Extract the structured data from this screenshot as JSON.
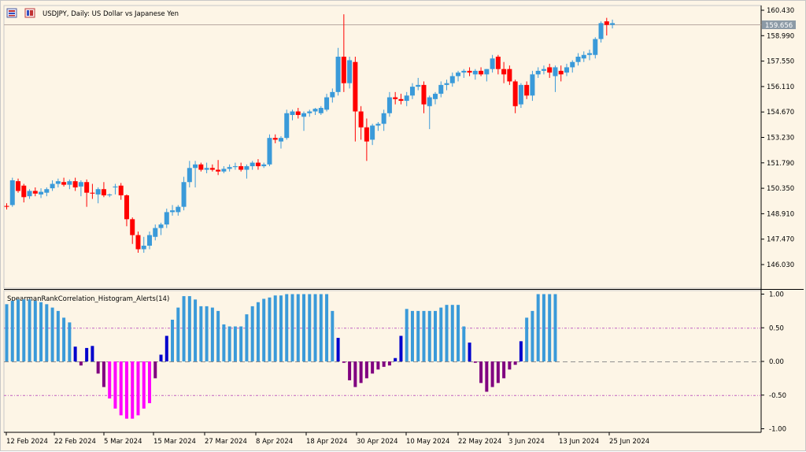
{
  "window": {
    "symbol_title": "USDJPY, Daily:  US Dollar vs Japanese Yen",
    "indicator_title": "SpearmanRankCorrelation_Histogram_Alerts(14)"
  },
  "colors": {
    "background": "#fdf5e6",
    "bull_candle": "#3a9ad9",
    "bear_candle": "#ff0000",
    "hist_light_blue": "#3a9ad9",
    "hist_dark_blue": "#0000cc",
    "hist_purple": "#800080",
    "hist_magenta": "#ff00ff",
    "level_line": "#c060c0",
    "zero_line": "#999999",
    "price_label_bg": "#8c9aa6"
  },
  "price_axis": {
    "ticks": [
      "160.430",
      "158.990",
      "157.550",
      "156.110",
      "154.670",
      "153.230",
      "151.790",
      "150.350",
      "148.910",
      "147.470",
      "146.030"
    ],
    "current_price": "159.656"
  },
  "indicator_axis": {
    "ticks": [
      "1.00",
      "0.50",
      "0.00",
      "-0.50",
      "-1.00"
    ]
  },
  "time_axis": {
    "labels": [
      "12 Feb 2024",
      "22 Feb 2024",
      "5 Mar 2024",
      "15 Mar 2024",
      "27 Mar 2024",
      "8 Apr 2024",
      "18 Apr 2024",
      "30 Apr 2024",
      "10 May 2024",
      "22 May 2024",
      "3 Jun 2024",
      "13 Jun 2024",
      "25 Jun 2024"
    ]
  },
  "candles": [
    {
      "o": 149.35,
      "h": 149.5,
      "l": 149.15,
      "c": 149.3
    },
    {
      "o": 149.4,
      "h": 150.95,
      "l": 149.3,
      "c": 150.8
    },
    {
      "o": 150.75,
      "h": 150.9,
      "l": 150.1,
      "c": 150.2
    },
    {
      "o": 150.5,
      "h": 150.6,
      "l": 149.55,
      "c": 149.85
    },
    {
      "o": 149.9,
      "h": 150.3,
      "l": 149.75,
      "c": 150.2
    },
    {
      "o": 150.2,
      "h": 150.4,
      "l": 149.9,
      "c": 150.05
    },
    {
      "o": 150.0,
      "h": 150.35,
      "l": 149.8,
      "c": 150.15
    },
    {
      "o": 150.1,
      "h": 150.4,
      "l": 149.9,
      "c": 150.3
    },
    {
      "o": 150.35,
      "h": 150.8,
      "l": 150.2,
      "c": 150.6
    },
    {
      "o": 150.6,
      "h": 150.9,
      "l": 150.4,
      "c": 150.75
    },
    {
      "o": 150.7,
      "h": 150.95,
      "l": 150.45,
      "c": 150.55
    },
    {
      "o": 150.55,
      "h": 150.85,
      "l": 150.3,
      "c": 150.75
    },
    {
      "o": 150.75,
      "h": 150.95,
      "l": 150.2,
      "c": 150.4
    },
    {
      "o": 150.45,
      "h": 150.8,
      "l": 149.9,
      "c": 150.7
    },
    {
      "o": 150.7,
      "h": 150.85,
      "l": 149.3,
      "c": 150.1
    },
    {
      "o": 150.1,
      "h": 150.6,
      "l": 149.75,
      "c": 150.05
    },
    {
      "o": 150.0,
      "h": 150.4,
      "l": 149.5,
      "c": 150.3
    },
    {
      "o": 150.3,
      "h": 150.7,
      "l": 149.85,
      "c": 149.95
    },
    {
      "o": 149.95,
      "h": 150.05,
      "l": 149.85,
      "c": 150.0
    },
    {
      "o": 150.4,
      "h": 150.6,
      "l": 150.0,
      "c": 150.45
    },
    {
      "o": 150.5,
      "h": 150.65,
      "l": 149.7,
      "c": 149.95
    },
    {
      "o": 149.95,
      "h": 150.0,
      "l": 148.2,
      "c": 148.6
    },
    {
      "o": 148.6,
      "h": 148.7,
      "l": 147.2,
      "c": 147.7
    },
    {
      "o": 147.7,
      "h": 147.9,
      "l": 146.7,
      "c": 146.9
    },
    {
      "o": 146.9,
      "h": 147.6,
      "l": 146.7,
      "c": 147.1
    },
    {
      "o": 147.1,
      "h": 147.9,
      "l": 146.9,
      "c": 147.7
    },
    {
      "o": 147.6,
      "h": 148.3,
      "l": 147.4,
      "c": 148.1
    },
    {
      "o": 148.1,
      "h": 148.4,
      "l": 147.7,
      "c": 148.3
    },
    {
      "o": 148.3,
      "h": 149.2,
      "l": 148.1,
      "c": 149.0
    },
    {
      "o": 149.0,
      "h": 149.4,
      "l": 148.8,
      "c": 149.1
    },
    {
      "o": 149.0,
      "h": 149.4,
      "l": 148.8,
      "c": 149.3
    },
    {
      "o": 149.3,
      "h": 151.0,
      "l": 149.1,
      "c": 150.7
    },
    {
      "o": 150.7,
      "h": 151.9,
      "l": 150.4,
      "c": 151.5
    },
    {
      "o": 151.5,
      "h": 151.9,
      "l": 150.4,
      "c": 151.7
    },
    {
      "o": 151.7,
      "h": 151.8,
      "l": 151.3,
      "c": 151.4
    },
    {
      "o": 151.4,
      "h": 151.8,
      "l": 151.2,
      "c": 151.5
    },
    {
      "o": 151.5,
      "h": 151.7,
      "l": 151.3,
      "c": 151.4
    },
    {
      "o": 151.4,
      "h": 151.95,
      "l": 151.1,
      "c": 151.3
    },
    {
      "o": 151.3,
      "h": 151.6,
      "l": 151.2,
      "c": 151.45
    },
    {
      "o": 151.45,
      "h": 151.7,
      "l": 151.3,
      "c": 151.55
    },
    {
      "o": 151.55,
      "h": 151.8,
      "l": 151.4,
      "c": 151.6
    },
    {
      "o": 151.6,
      "h": 151.8,
      "l": 151.3,
      "c": 151.4
    },
    {
      "o": 151.4,
      "h": 151.7,
      "l": 150.9,
      "c": 151.6
    },
    {
      "o": 151.6,
      "h": 151.9,
      "l": 151.4,
      "c": 151.8
    },
    {
      "o": 151.8,
      "h": 152.0,
      "l": 151.4,
      "c": 151.6
    },
    {
      "o": 151.6,
      "h": 151.8,
      "l": 151.5,
      "c": 151.7
    },
    {
      "o": 151.7,
      "h": 153.4,
      "l": 151.6,
      "c": 153.2
    },
    {
      "o": 153.2,
      "h": 153.4,
      "l": 152.9,
      "c": 153.1
    },
    {
      "o": 153.0,
      "h": 153.3,
      "l": 152.6,
      "c": 153.2
    },
    {
      "o": 153.2,
      "h": 154.8,
      "l": 153.1,
      "c": 154.6
    },
    {
      "o": 154.5,
      "h": 154.8,
      "l": 154.2,
      "c": 154.7
    },
    {
      "o": 154.7,
      "h": 154.9,
      "l": 154.3,
      "c": 154.5
    },
    {
      "o": 154.4,
      "h": 154.7,
      "l": 153.6,
      "c": 154.6
    },
    {
      "o": 154.6,
      "h": 154.8,
      "l": 154.4,
      "c": 154.7
    },
    {
      "o": 154.7,
      "h": 154.9,
      "l": 154.5,
      "c": 154.85
    },
    {
      "o": 154.6,
      "h": 155.0,
      "l": 154.5,
      "c": 154.9
    },
    {
      "o": 154.8,
      "h": 155.7,
      "l": 154.7,
      "c": 155.5
    },
    {
      "o": 155.5,
      "h": 156.0,
      "l": 155.2,
      "c": 155.8
    },
    {
      "o": 155.8,
      "h": 158.3,
      "l": 155.6,
      "c": 157.8
    },
    {
      "o": 157.8,
      "h": 160.2,
      "l": 155.8,
      "c": 156.3
    },
    {
      "o": 156.3,
      "h": 157.8,
      "l": 156.0,
      "c": 157.6
    },
    {
      "o": 157.5,
      "h": 157.8,
      "l": 153.0,
      "c": 154.7
    },
    {
      "o": 154.7,
      "h": 155.0,
      "l": 153.1,
      "c": 153.8
    },
    {
      "o": 153.8,
      "h": 154.3,
      "l": 151.9,
      "c": 153.0
    },
    {
      "o": 153.1,
      "h": 154.0,
      "l": 152.8,
      "c": 153.9
    },
    {
      "o": 153.9,
      "h": 154.1,
      "l": 153.6,
      "c": 154.0
    },
    {
      "o": 154.0,
      "h": 154.8,
      "l": 153.6,
      "c": 154.6
    },
    {
      "o": 154.6,
      "h": 155.8,
      "l": 154.4,
      "c": 155.5
    },
    {
      "o": 155.5,
      "h": 155.8,
      "l": 155.1,
      "c": 155.4
    },
    {
      "o": 155.4,
      "h": 155.7,
      "l": 155.1,
      "c": 155.3
    },
    {
      "o": 155.3,
      "h": 155.8,
      "l": 155.0,
      "c": 155.6
    },
    {
      "o": 155.6,
      "h": 156.3,
      "l": 155.4,
      "c": 156.1
    },
    {
      "o": 156.1,
      "h": 156.6,
      "l": 155.9,
      "c": 156.2
    },
    {
      "o": 156.2,
      "h": 156.4,
      "l": 154.6,
      "c": 155.1
    },
    {
      "o": 155.0,
      "h": 155.6,
      "l": 153.7,
      "c": 155.5
    },
    {
      "o": 155.4,
      "h": 155.8,
      "l": 155.1,
      "c": 155.7
    },
    {
      "o": 155.7,
      "h": 156.4,
      "l": 155.5,
      "c": 156.2
    },
    {
      "o": 156.2,
      "h": 156.5,
      "l": 155.9,
      "c": 156.3
    },
    {
      "o": 156.3,
      "h": 156.9,
      "l": 156.1,
      "c": 156.7
    },
    {
      "o": 156.7,
      "h": 157.0,
      "l": 156.4,
      "c": 156.9
    },
    {
      "o": 156.9,
      "h": 157.1,
      "l": 156.6,
      "c": 157.0
    },
    {
      "o": 157.0,
      "h": 157.2,
      "l": 156.7,
      "c": 156.9
    },
    {
      "o": 156.8,
      "h": 157.1,
      "l": 156.5,
      "c": 157.0
    },
    {
      "o": 157.0,
      "h": 157.2,
      "l": 156.7,
      "c": 156.8
    },
    {
      "o": 156.8,
      "h": 157.1,
      "l": 156.4,
      "c": 157.1
    },
    {
      "o": 157.1,
      "h": 157.9,
      "l": 156.9,
      "c": 157.7
    },
    {
      "o": 157.8,
      "h": 157.9,
      "l": 156.8,
      "c": 157.1
    },
    {
      "o": 157.1,
      "h": 157.5,
      "l": 156.3,
      "c": 156.8
    },
    {
      "o": 157.1,
      "h": 157.3,
      "l": 156.2,
      "c": 156.4
    },
    {
      "o": 156.4,
      "h": 156.5,
      "l": 154.6,
      "c": 155.0
    },
    {
      "o": 155.1,
      "h": 156.3,
      "l": 154.9,
      "c": 156.2
    },
    {
      "o": 156.2,
      "h": 156.4,
      "l": 155.4,
      "c": 155.6
    },
    {
      "o": 155.6,
      "h": 157.0,
      "l": 155.3,
      "c": 156.8
    },
    {
      "o": 156.8,
      "h": 157.2,
      "l": 156.6,
      "c": 157.0
    },
    {
      "o": 157.0,
      "h": 157.3,
      "l": 156.8,
      "c": 157.1
    },
    {
      "o": 157.2,
      "h": 157.4,
      "l": 156.6,
      "c": 156.9
    },
    {
      "o": 156.7,
      "h": 157.3,
      "l": 155.8,
      "c": 157.2
    },
    {
      "o": 157.0,
      "h": 157.3,
      "l": 156.4,
      "c": 156.8
    },
    {
      "o": 156.9,
      "h": 157.4,
      "l": 156.7,
      "c": 157.2
    },
    {
      "o": 157.2,
      "h": 157.6,
      "l": 156.9,
      "c": 157.5
    },
    {
      "o": 157.5,
      "h": 158.0,
      "l": 157.3,
      "c": 157.8
    },
    {
      "o": 157.7,
      "h": 158.1,
      "l": 157.5,
      "c": 157.9
    },
    {
      "o": 157.9,
      "h": 158.2,
      "l": 157.6,
      "c": 158.0
    },
    {
      "o": 157.9,
      "h": 158.9,
      "l": 157.7,
      "c": 158.8
    },
    {
      "o": 158.8,
      "h": 159.8,
      "l": 158.6,
      "c": 159.7
    },
    {
      "o": 159.8,
      "h": 160.0,
      "l": 159.0,
      "c": 159.6
    },
    {
      "o": 159.6,
      "h": 159.9,
      "l": 159.4,
      "c": 159.7
    }
  ],
  "histogram": [
    {
      "v": 0.85,
      "c": "light"
    },
    {
      "v": 0.9,
      "c": "light"
    },
    {
      "v": 0.92,
      "c": "light"
    },
    {
      "v": 0.92,
      "c": "light"
    },
    {
      "v": 0.92,
      "c": "light"
    },
    {
      "v": 0.9,
      "c": "light"
    },
    {
      "v": 0.88,
      "c": "light"
    },
    {
      "v": 0.85,
      "c": "light"
    },
    {
      "v": 0.8,
      "c": "light"
    },
    {
      "v": 0.75,
      "c": "light"
    },
    {
      "v": 0.65,
      "c": "light"
    },
    {
      "v": 0.58,
      "c": "light"
    },
    {
      "v": 0.22,
      "c": "dark"
    },
    {
      "v": -0.06,
      "c": "purple"
    },
    {
      "v": 0.2,
      "c": "dark"
    },
    {
      "v": 0.23,
      "c": "dark"
    },
    {
      "v": -0.18,
      "c": "purple"
    },
    {
      "v": -0.38,
      "c": "purple"
    },
    {
      "v": -0.55,
      "c": "magenta"
    },
    {
      "v": -0.7,
      "c": "magenta"
    },
    {
      "v": -0.8,
      "c": "magenta"
    },
    {
      "v": -0.85,
      "c": "magenta"
    },
    {
      "v": -0.85,
      "c": "magenta"
    },
    {
      "v": -0.8,
      "c": "magenta"
    },
    {
      "v": -0.7,
      "c": "magenta"
    },
    {
      "v": -0.62,
      "c": "magenta"
    },
    {
      "v": -0.25,
      "c": "purple"
    },
    {
      "v": 0.1,
      "c": "dark"
    },
    {
      "v": 0.38,
      "c": "dark"
    },
    {
      "v": 0.62,
      "c": "light"
    },
    {
      "v": 0.8,
      "c": "light"
    },
    {
      "v": 0.97,
      "c": "light"
    },
    {
      "v": 0.97,
      "c": "light"
    },
    {
      "v": 0.92,
      "c": "light"
    },
    {
      "v": 0.82,
      "c": "light"
    },
    {
      "v": 0.82,
      "c": "light"
    },
    {
      "v": 0.8,
      "c": "light"
    },
    {
      "v": 0.75,
      "c": "light"
    },
    {
      "v": 0.55,
      "c": "light"
    },
    {
      "v": 0.52,
      "c": "light"
    },
    {
      "v": 0.52,
      "c": "light"
    },
    {
      "v": 0.52,
      "c": "light"
    },
    {
      "v": 0.7,
      "c": "light"
    },
    {
      "v": 0.82,
      "c": "light"
    },
    {
      "v": 0.88,
      "c": "light"
    },
    {
      "v": 0.93,
      "c": "light"
    },
    {
      "v": 0.95,
      "c": "light"
    },
    {
      "v": 0.98,
      "c": "light"
    },
    {
      "v": 0.98,
      "c": "light"
    },
    {
      "v": 1.0,
      "c": "light"
    },
    {
      "v": 1.0,
      "c": "light"
    },
    {
      "v": 1.0,
      "c": "light"
    },
    {
      "v": 1.0,
      "c": "light"
    },
    {
      "v": 1.0,
      "c": "light"
    },
    {
      "v": 1.0,
      "c": "light"
    },
    {
      "v": 1.0,
      "c": "light"
    },
    {
      "v": 1.0,
      "c": "light"
    },
    {
      "v": 0.75,
      "c": "light"
    },
    {
      "v": 0.35,
      "c": "dark"
    },
    {
      "v": -0.02,
      "c": "purple"
    },
    {
      "v": -0.28,
      "c": "purple"
    },
    {
      "v": -0.38,
      "c": "purple"
    },
    {
      "v": -0.32,
      "c": "purple"
    },
    {
      "v": -0.25,
      "c": "purple"
    },
    {
      "v": -0.18,
      "c": "purple"
    },
    {
      "v": -0.12,
      "c": "purple"
    },
    {
      "v": -0.08,
      "c": "purple"
    },
    {
      "v": -0.06,
      "c": "purple"
    },
    {
      "v": 0.05,
      "c": "dark"
    },
    {
      "v": 0.38,
      "c": "dark"
    },
    {
      "v": 0.78,
      "c": "light"
    },
    {
      "v": 0.75,
      "c": "light"
    },
    {
      "v": 0.75,
      "c": "light"
    },
    {
      "v": 0.75,
      "c": "light"
    },
    {
      "v": 0.75,
      "c": "light"
    },
    {
      "v": 0.75,
      "c": "light"
    },
    {
      "v": 0.8,
      "c": "light"
    },
    {
      "v": 0.84,
      "c": "light"
    },
    {
      "v": 0.84,
      "c": "light"
    },
    {
      "v": 0.84,
      "c": "light"
    },
    {
      "v": 0.52,
      "c": "light"
    },
    {
      "v": 0.28,
      "c": "dark"
    },
    {
      "v": -0.02,
      "c": "purple"
    },
    {
      "v": -0.32,
      "c": "purple"
    },
    {
      "v": -0.45,
      "c": "purple"
    },
    {
      "v": -0.38,
      "c": "purple"
    },
    {
      "v": -0.32,
      "c": "purple"
    },
    {
      "v": -0.25,
      "c": "purple"
    },
    {
      "v": -0.12,
      "c": "purple"
    },
    {
      "v": -0.05,
      "c": "purple"
    },
    {
      "v": 0.3,
      "c": "dark"
    },
    {
      "v": 0.65,
      "c": "light"
    },
    {
      "v": 0.75,
      "c": "light"
    },
    {
      "v": 1.0,
      "c": "light"
    },
    {
      "v": 1.0,
      "c": "light"
    },
    {
      "v": 1.0,
      "c": "light"
    },
    {
      "v": 1.0,
      "c": "light"
    }
  ]
}
